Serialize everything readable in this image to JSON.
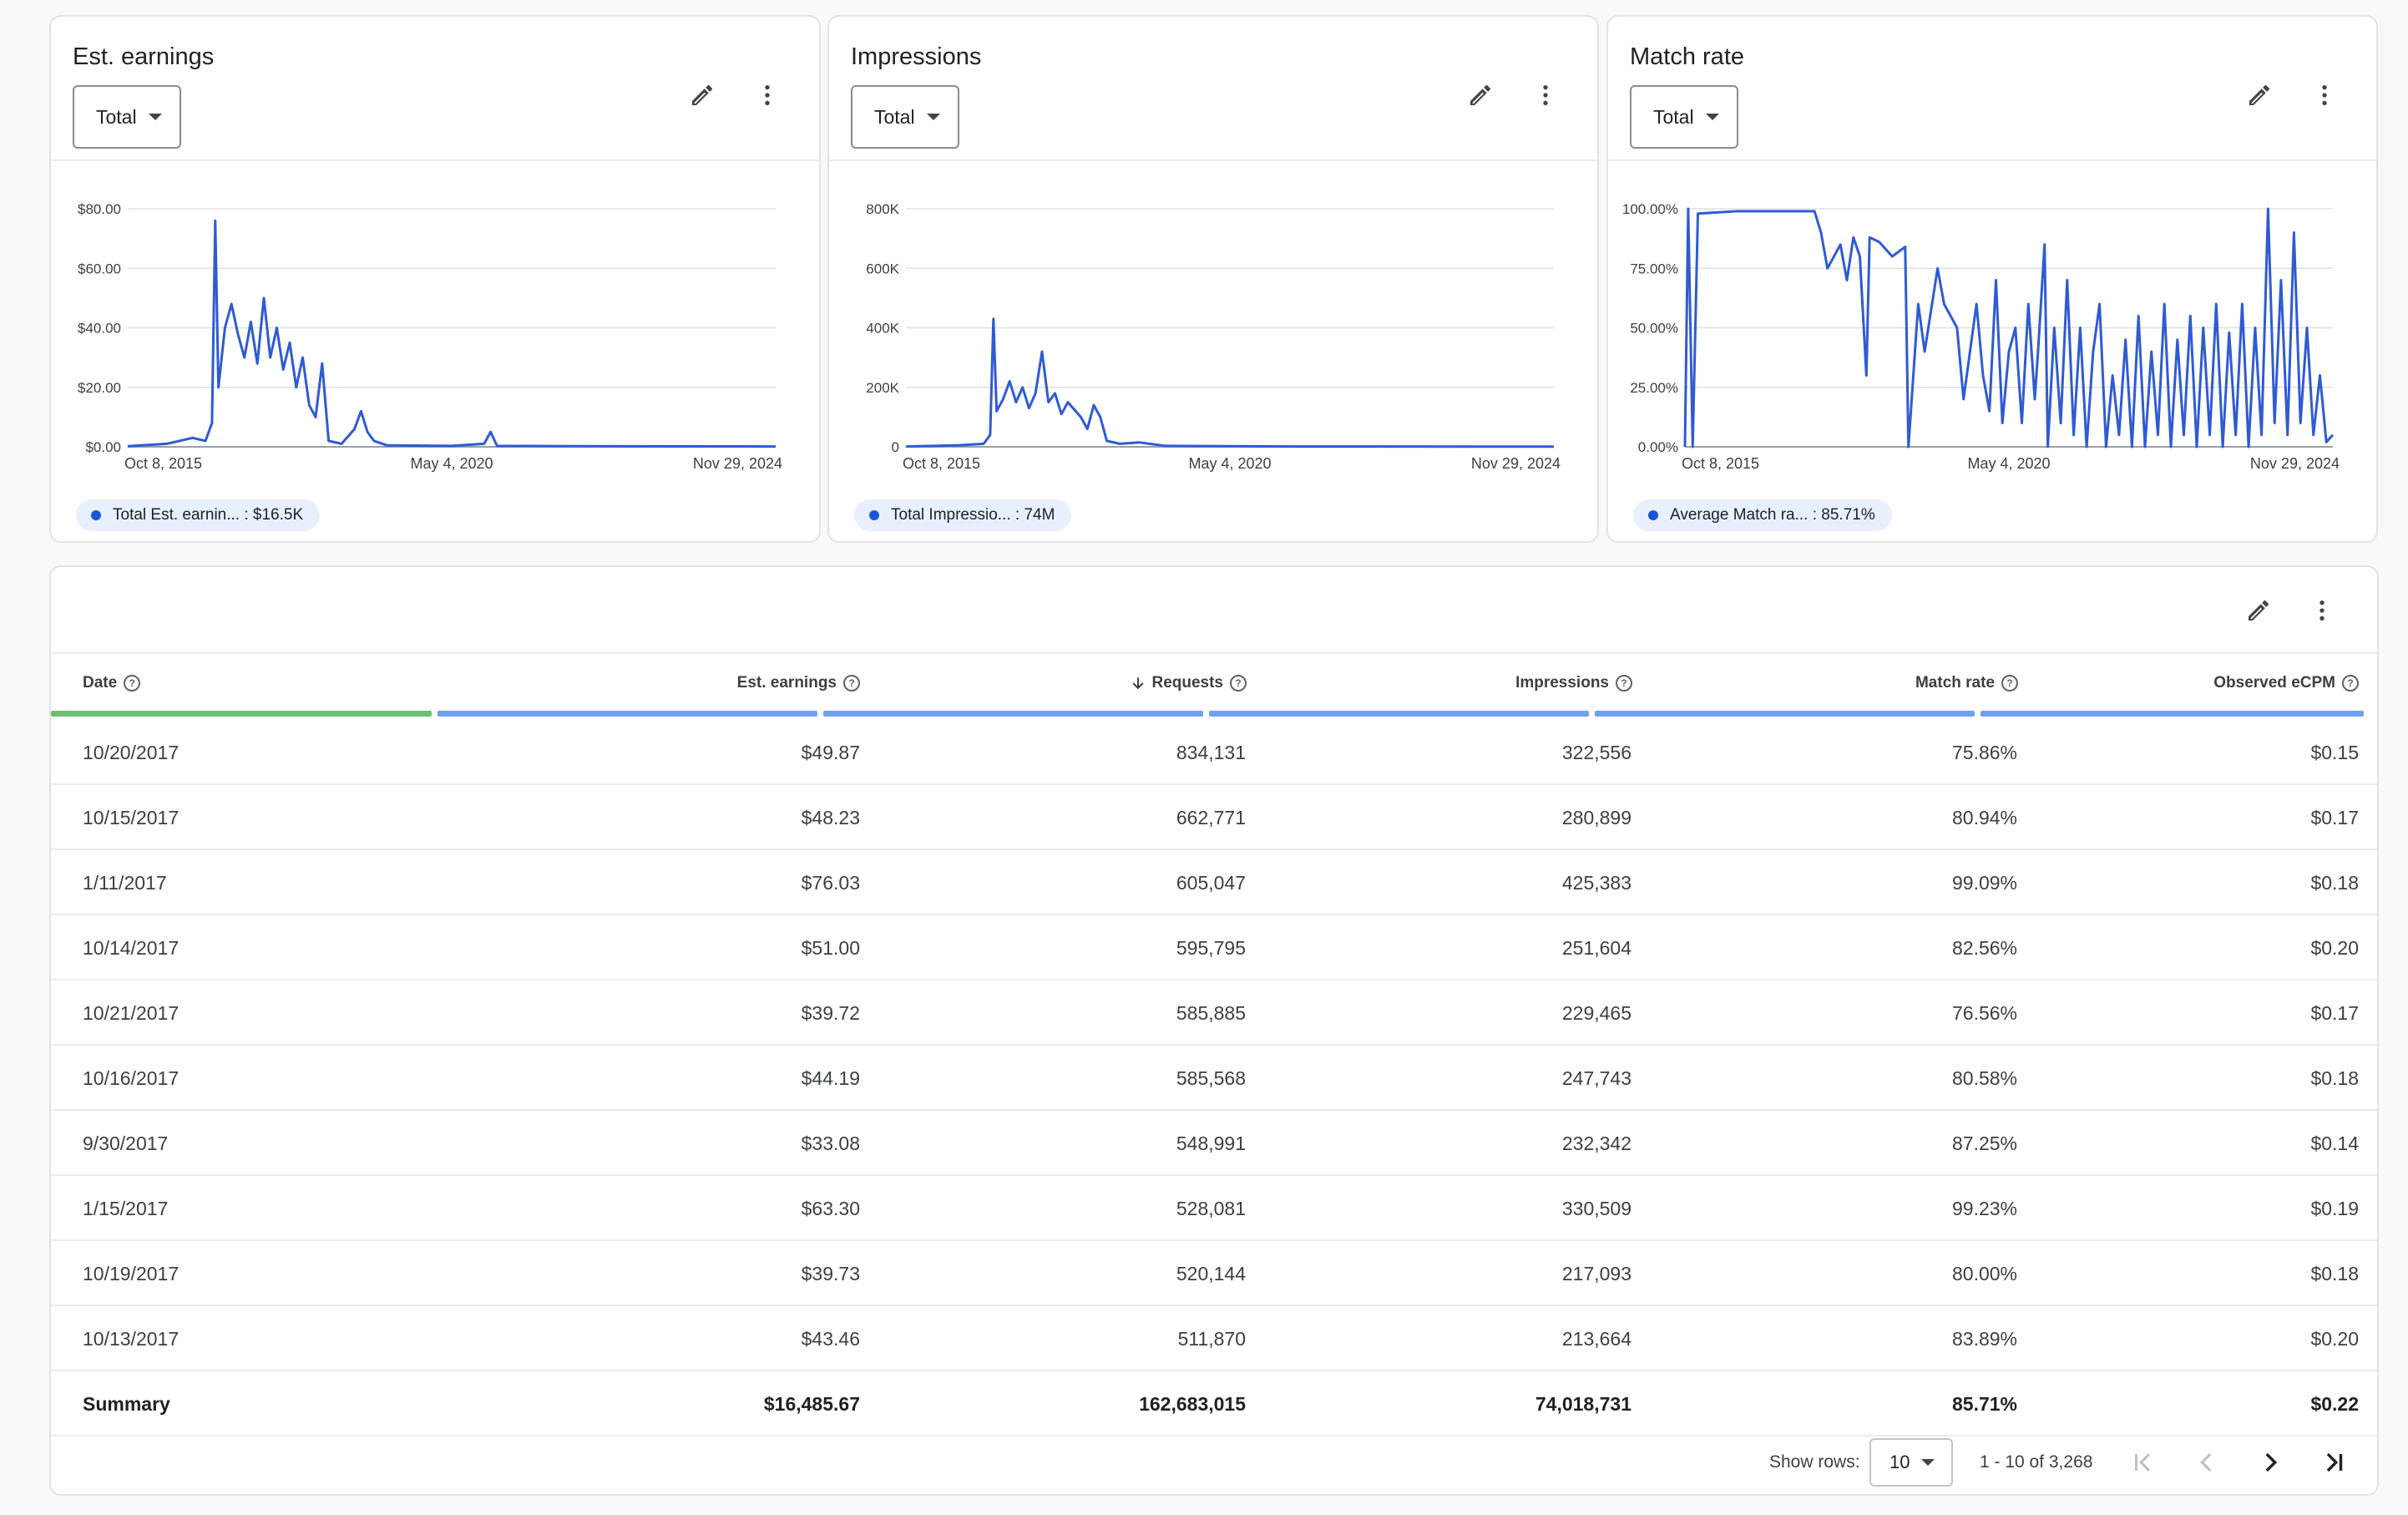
{
  "charts": [
    {
      "title": "Est. earnings",
      "filter_label": "Total",
      "legend": "Total Est. earnin... : $16.5K",
      "y_ticks": [
        "$0.00",
        "$20.00",
        "$40.00",
        "$60.00",
        "$80.00"
      ],
      "x_ticks": [
        "Oct 8, 2015",
        "May 4, 2020",
        "Nov 29, 2024"
      ],
      "line_color": "#2f5bd3"
    },
    {
      "title": "Impressions",
      "filter_label": "Total",
      "legend": "Total Impressio... : 74M",
      "y_ticks": [
        "0",
        "200K",
        "400K",
        "600K",
        "800K"
      ],
      "x_ticks": [
        "Oct 8, 2015",
        "May 4, 2020",
        "Nov 29, 2024"
      ],
      "line_color": "#2f5bd3"
    },
    {
      "title": "Match rate",
      "filter_label": "Total",
      "legend": "Average Match ra... : 85.71%",
      "y_ticks": [
        "0.00%",
        "25.00%",
        "50.00%",
        "75.00%",
        "100.00%"
      ],
      "x_ticks": [
        "Oct 8, 2015",
        "May 4, 2020",
        "Nov 29, 2024"
      ],
      "line_color": "#2f5bd3"
    }
  ],
  "chart_data": [
    {
      "type": "line",
      "title": "Est. earnings",
      "ylim": [
        0,
        80
      ],
      "x_start": "Oct 8, 2015",
      "x_end": "Nov 29, 2024",
      "points": [
        [
          0,
          0.2
        ],
        [
          0.06,
          1
        ],
        [
          0.1,
          3
        ],
        [
          0.12,
          2
        ],
        [
          0.13,
          8
        ],
        [
          0.135,
          76
        ],
        [
          0.14,
          20
        ],
        [
          0.15,
          40
        ],
        [
          0.16,
          48
        ],
        [
          0.17,
          38
        ],
        [
          0.18,
          30
        ],
        [
          0.19,
          42
        ],
        [
          0.2,
          28
        ],
        [
          0.21,
          50
        ],
        [
          0.22,
          30
        ],
        [
          0.23,
          40
        ],
        [
          0.24,
          26
        ],
        [
          0.25,
          35
        ],
        [
          0.26,
          20
        ],
        [
          0.27,
          30
        ],
        [
          0.28,
          14
        ],
        [
          0.29,
          10
        ],
        [
          0.3,
          28
        ],
        [
          0.31,
          2
        ],
        [
          0.33,
          1
        ],
        [
          0.35,
          6
        ],
        [
          0.36,
          12
        ],
        [
          0.37,
          5
        ],
        [
          0.38,
          2
        ],
        [
          0.4,
          0.5
        ],
        [
          0.5,
          0.3
        ],
        [
          0.55,
          1
        ],
        [
          0.56,
          5
        ],
        [
          0.57,
          0.3
        ],
        [
          0.7,
          0.2
        ],
        [
          1,
          0.1
        ]
      ]
    },
    {
      "type": "line",
      "title": "Impressions",
      "ylim": [
        0,
        800000
      ],
      "x_start": "Oct 8, 2015",
      "x_end": "Nov 29, 2024",
      "points": [
        [
          0,
          1000
        ],
        [
          0.08,
          5000
        ],
        [
          0.12,
          10000
        ],
        [
          0.13,
          40000
        ],
        [
          0.135,
          430000
        ],
        [
          0.14,
          120000
        ],
        [
          0.15,
          160000
        ],
        [
          0.16,
          220000
        ],
        [
          0.17,
          150000
        ],
        [
          0.18,
          200000
        ],
        [
          0.19,
          130000
        ],
        [
          0.2,
          180000
        ],
        [
          0.21,
          320000
        ],
        [
          0.22,
          150000
        ],
        [
          0.23,
          180000
        ],
        [
          0.24,
          110000
        ],
        [
          0.25,
          150000
        ],
        [
          0.27,
          100000
        ],
        [
          0.28,
          60000
        ],
        [
          0.29,
          140000
        ],
        [
          0.3,
          100000
        ],
        [
          0.31,
          20000
        ],
        [
          0.33,
          10000
        ],
        [
          0.36,
          15000
        ],
        [
          0.4,
          3000
        ],
        [
          0.6,
          1000
        ],
        [
          1,
          500
        ]
      ]
    },
    {
      "type": "line",
      "title": "Match rate",
      "ylim": [
        0,
        100
      ],
      "x_start": "Oct 8, 2015",
      "x_end": "Nov 29, 2024",
      "points": [
        [
          0,
          0
        ],
        [
          0.005,
          100
        ],
        [
          0.012,
          0
        ],
        [
          0.02,
          98
        ],
        [
          0.08,
          99
        ],
        [
          0.2,
          99
        ],
        [
          0.21,
          90
        ],
        [
          0.22,
          75
        ],
        [
          0.24,
          85
        ],
        [
          0.25,
          70
        ],
        [
          0.26,
          88
        ],
        [
          0.27,
          80
        ],
        [
          0.28,
          30
        ],
        [
          0.285,
          88
        ],
        [
          0.3,
          86
        ],
        [
          0.32,
          80
        ],
        [
          0.34,
          84
        ],
        [
          0.345,
          0
        ],
        [
          0.36,
          60
        ],
        [
          0.37,
          40
        ],
        [
          0.39,
          75
        ],
        [
          0.4,
          60
        ],
        [
          0.42,
          50
        ],
        [
          0.43,
          20
        ],
        [
          0.44,
          40
        ],
        [
          0.45,
          60
        ],
        [
          0.46,
          30
        ],
        [
          0.47,
          15
        ],
        [
          0.48,
          70
        ],
        [
          0.49,
          10
        ],
        [
          0.5,
          40
        ],
        [
          0.51,
          50
        ],
        [
          0.52,
          10
        ],
        [
          0.53,
          60
        ],
        [
          0.54,
          20
        ],
        [
          0.545,
          40
        ],
        [
          0.555,
          85
        ],
        [
          0.56,
          0
        ],
        [
          0.57,
          50
        ],
        [
          0.58,
          10
        ],
        [
          0.59,
          70
        ],
        [
          0.6,
          5
        ],
        [
          0.61,
          50
        ],
        [
          0.62,
          0
        ],
        [
          0.63,
          40
        ],
        [
          0.64,
          60
        ],
        [
          0.65,
          0
        ],
        [
          0.66,
          30
        ],
        [
          0.67,
          5
        ],
        [
          0.68,
          45
        ],
        [
          0.69,
          0
        ],
        [
          0.7,
          55
        ],
        [
          0.71,
          0
        ],
        [
          0.72,
          40
        ],
        [
          0.73,
          5
        ],
        [
          0.74,
          60
        ],
        [
          0.75,
          0
        ],
        [
          0.76,
          45
        ],
        [
          0.77,
          5
        ],
        [
          0.78,
          55
        ],
        [
          0.79,
          0
        ],
        [
          0.8,
          50
        ],
        [
          0.81,
          5
        ],
        [
          0.82,
          60
        ],
        [
          0.83,
          0
        ],
        [
          0.84,
          48
        ],
        [
          0.85,
          5
        ],
        [
          0.86,
          60
        ],
        [
          0.87,
          0
        ],
        [
          0.88,
          50
        ],
        [
          0.89,
          5
        ],
        [
          0.9,
          100
        ],
        [
          0.91,
          10
        ],
        [
          0.92,
          70
        ],
        [
          0.93,
          5
        ],
        [
          0.94,
          90
        ],
        [
          0.95,
          10
        ],
        [
          0.96,
          50
        ],
        [
          0.97,
          5
        ],
        [
          0.98,
          30
        ],
        [
          0.99,
          2
        ],
        [
          1,
          5
        ]
      ]
    }
  ],
  "table": {
    "columns": [
      {
        "label": "Date",
        "align": "left",
        "bar_color": "#6fbf73"
      },
      {
        "label": "Est. earnings",
        "align": "right",
        "bar_color": "#6ea1f2"
      },
      {
        "label": "Requests",
        "align": "right",
        "bar_color": "#6ea1f2",
        "sorted": true
      },
      {
        "label": "Impressions",
        "align": "right",
        "bar_color": "#6ea1f2"
      },
      {
        "label": "Match rate",
        "align": "right",
        "bar_color": "#6ea1f2"
      },
      {
        "label": "Observed eCPM",
        "align": "right",
        "bar_color": "#6ea1f2"
      }
    ],
    "rows": [
      [
        "10/20/2017",
        "$49.87",
        "834,131",
        "322,556",
        "75.86%",
        "$0.15"
      ],
      [
        "10/15/2017",
        "$48.23",
        "662,771",
        "280,899",
        "80.94%",
        "$0.17"
      ],
      [
        "1/11/2017",
        "$76.03",
        "605,047",
        "425,383",
        "99.09%",
        "$0.18"
      ],
      [
        "10/14/2017",
        "$51.00",
        "595,795",
        "251,604",
        "82.56%",
        "$0.20"
      ],
      [
        "10/21/2017",
        "$39.72",
        "585,885",
        "229,465",
        "76.56%",
        "$0.17"
      ],
      [
        "10/16/2017",
        "$44.19",
        "585,568",
        "247,743",
        "80.58%",
        "$0.18"
      ],
      [
        "9/30/2017",
        "$33.08",
        "548,991",
        "232,342",
        "87.25%",
        "$0.14"
      ],
      [
        "1/15/2017",
        "$63.30",
        "528,081",
        "330,509",
        "99.23%",
        "$0.19"
      ],
      [
        "10/19/2017",
        "$39.73",
        "520,144",
        "217,093",
        "80.00%",
        "$0.18"
      ],
      [
        "10/13/2017",
        "$43.46",
        "511,870",
        "213,664",
        "83.89%",
        "$0.20"
      ]
    ],
    "summary": [
      "Summary",
      "$16,485.67",
      "162,683,015",
      "74,018,731",
      "85.71%",
      "$0.22"
    ]
  },
  "pagination": {
    "show_rows_label": "Show rows:",
    "rows_per_page": "10",
    "range_label": "1 - 10 of 3,268"
  }
}
